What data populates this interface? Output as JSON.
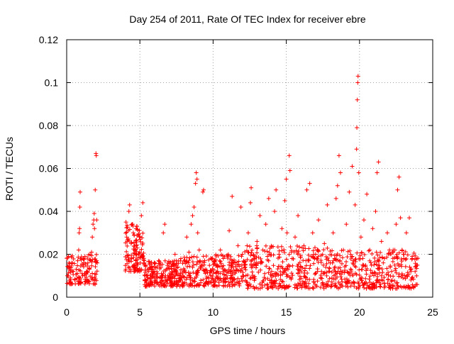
{
  "chart_data": {
    "type": "scatter",
    "title": "Day 254 of 2011, Rate Of TEC Index for receiver ebre",
    "xlabel": "GPS time / hours",
    "ylabel": "ROTI / TECUs",
    "xlim": [
      0,
      25
    ],
    "ylim": [
      0,
      0.12
    ],
    "x_ticks": [
      0,
      5,
      10,
      15,
      20,
      25
    ],
    "x_tick_labels": [
      "0",
      "5",
      "10",
      "15",
      "20",
      "25"
    ],
    "y_ticks": [
      0,
      0.02,
      0.04,
      0.06,
      0.08,
      0.1,
      0.12
    ],
    "y_tick_labels": [
      "0",
      "0.02",
      "0.04",
      "0.06",
      "0.08",
      "0.1",
      "0.12"
    ],
    "grid": true,
    "marker": "+",
    "color": "#ff0000",
    "series": [
      {
        "name": "ROTI",
        "points": [
          [
            0.05,
            0.01
          ],
          [
            0.15,
            0.014
          ],
          [
            0.25,
            0.009
          ],
          [
            0.35,
            0.016
          ],
          [
            0.45,
            0.012
          ],
          [
            0.55,
            0.008
          ],
          [
            0.65,
            0.013
          ],
          [
            0.75,
            0.017
          ],
          [
            0.82,
            0.022
          ],
          [
            0.85,
            0.03
          ],
          [
            0.88,
            0.032
          ],
          [
            0.9,
            0.042
          ],
          [
            0.92,
            0.049
          ],
          [
            0.95,
            0.018
          ],
          [
            1.05,
            0.011
          ],
          [
            1.15,
            0.015
          ],
          [
            1.25,
            0.019
          ],
          [
            1.35,
            0.012
          ],
          [
            1.45,
            0.016
          ],
          [
            1.55,
            0.013
          ],
          [
            1.65,
            0.017
          ],
          [
            1.7,
            0.021
          ],
          [
            1.75,
            0.028
          ],
          [
            1.8,
            0.034
          ],
          [
            1.85,
            0.036
          ],
          [
            1.88,
            0.039
          ],
          [
            1.9,
            0.032
          ],
          [
            1.95,
            0.05
          ],
          [
            2.0,
            0.067
          ],
          [
            2.02,
            0.066
          ],
          [
            2.05,
            0.036
          ],
          [
            4.05,
            0.035
          ],
          [
            4.1,
            0.028
          ],
          [
            4.2,
            0.031
          ],
          [
            4.25,
            0.04
          ],
          [
            4.3,
            0.043
          ],
          [
            4.4,
            0.025
          ],
          [
            4.5,
            0.034
          ],
          [
            4.6,
            0.029
          ],
          [
            4.7,
            0.022
          ],
          [
            4.8,
            0.033
          ],
          [
            4.9,
            0.02
          ],
          [
            5.0,
            0.027
          ],
          [
            5.1,
            0.038
          ],
          [
            5.2,
            0.044
          ],
          [
            5.3,
            0.016
          ],
          [
            5.45,
            0.01
          ],
          [
            5.6,
            0.012
          ],
          [
            5.8,
            0.014
          ],
          [
            6.0,
            0.009
          ],
          [
            6.2,
            0.011
          ],
          [
            6.4,
            0.016
          ],
          [
            6.6,
            0.03
          ],
          [
            6.7,
            0.034
          ],
          [
            6.8,
            0.013
          ],
          [
            7.0,
            0.01
          ],
          [
            7.2,
            0.012
          ],
          [
            7.4,
            0.02
          ],
          [
            7.6,
            0.014
          ],
          [
            7.8,
            0.018
          ],
          [
            8.0,
            0.012
          ],
          [
            8.2,
            0.028
          ],
          [
            8.35,
            0.021
          ],
          [
            8.5,
            0.034
          ],
          [
            8.6,
            0.038
          ],
          [
            8.7,
            0.042
          ],
          [
            8.8,
            0.053
          ],
          [
            8.85,
            0.058
          ],
          [
            8.9,
            0.055
          ],
          [
            8.95,
            0.03
          ],
          [
            9.05,
            0.022
          ],
          [
            9.2,
            0.015
          ],
          [
            9.3,
            0.049
          ],
          [
            9.35,
            0.05
          ],
          [
            9.5,
            0.013
          ],
          [
            9.7,
            0.009
          ],
          [
            9.9,
            0.012
          ],
          [
            10.1,
            0.017
          ],
          [
            10.3,
            0.014
          ],
          [
            10.5,
            0.022
          ],
          [
            10.7,
            0.018
          ],
          [
            10.9,
            0.01
          ],
          [
            11.1,
            0.031
          ],
          [
            11.3,
            0.047
          ],
          [
            11.5,
            0.016
          ],
          [
            11.7,
            0.024
          ],
          [
            11.9,
            0.042
          ],
          [
            12.0,
            0.02
          ],
          [
            12.2,
            0.015
          ],
          [
            12.4,
            0.03
          ],
          [
            12.55,
            0.044
          ],
          [
            12.6,
            0.051
          ],
          [
            12.8,
            0.018
          ],
          [
            13.0,
            0.026
          ],
          [
            13.2,
            0.038
          ],
          [
            13.4,
            0.022
          ],
          [
            13.6,
            0.034
          ],
          [
            13.8,
            0.046
          ],
          [
            14.0,
            0.012
          ],
          [
            14.2,
            0.04
          ],
          [
            14.3,
            0.05
          ],
          [
            14.5,
            0.02
          ],
          [
            14.7,
            0.032
          ],
          [
            14.9,
            0.045
          ],
          [
            15.0,
            0.055
          ],
          [
            15.05,
            0.03
          ],
          [
            15.2,
            0.066
          ],
          [
            15.25,
            0.059
          ],
          [
            15.4,
            0.018
          ],
          [
            15.6,
            0.028
          ],
          [
            15.8,
            0.038
          ],
          [
            16.0,
            0.014
          ],
          [
            16.2,
            0.024
          ],
          [
            16.4,
            0.05
          ],
          [
            16.6,
            0.053
          ],
          [
            16.8,
            0.03
          ],
          [
            17.0,
            0.02
          ],
          [
            17.2,
            0.036
          ],
          [
            17.4,
            0.012
          ],
          [
            17.6,
            0.025
          ],
          [
            17.8,
            0.043
          ],
          [
            18.0,
            0.016
          ],
          [
            18.2,
            0.03
          ],
          [
            18.4,
            0.046
          ],
          [
            18.5,
            0.052
          ],
          [
            18.6,
            0.066
          ],
          [
            18.7,
            0.058
          ],
          [
            18.9,
            0.022
          ],
          [
            19.1,
            0.034
          ],
          [
            19.3,
            0.049
          ],
          [
            19.5,
            0.061
          ],
          [
            19.7,
            0.043
          ],
          [
            19.8,
            0.069
          ],
          [
            19.82,
            0.079
          ],
          [
            19.85,
            0.092
          ],
          [
            19.88,
            0.1
          ],
          [
            19.9,
            0.103
          ],
          [
            19.95,
            0.058
          ],
          [
            20.1,
            0.028
          ],
          [
            20.3,
            0.036
          ],
          [
            20.5,
            0.048
          ],
          [
            20.7,
            0.022
          ],
          [
            20.9,
            0.032
          ],
          [
            21.1,
            0.04
          ],
          [
            21.2,
            0.058
          ],
          [
            21.3,
            0.063
          ],
          [
            21.5,
            0.026
          ],
          [
            21.7,
            0.018
          ],
          [
            21.9,
            0.03
          ],
          [
            22.1,
            0.014
          ],
          [
            22.3,
            0.022
          ],
          [
            22.5,
            0.034
          ],
          [
            22.6,
            0.05
          ],
          [
            22.7,
            0.056
          ],
          [
            22.8,
            0.037
          ],
          [
            23.0,
            0.02
          ],
          [
            23.2,
            0.03
          ],
          [
            23.4,
            0.037
          ],
          [
            23.6,
            0.018
          ],
          [
            23.8,
            0.012
          ],
          [
            23.9,
            0.015
          ]
        ],
        "dense_bands": [
          {
            "x_range": [
              0.0,
              2.1
            ],
            "y_range": [
              0.006,
              0.02
            ],
            "count": 120
          },
          {
            "x_range": [
              4.0,
              5.3
            ],
            "y_range": [
              0.012,
              0.034
            ],
            "count": 120
          },
          {
            "x_range": [
              5.3,
              8.0
            ],
            "y_range": [
              0.005,
              0.017
            ],
            "count": 220
          },
          {
            "x_range": [
              8.0,
              12.0
            ],
            "y_range": [
              0.005,
              0.02
            ],
            "count": 260
          },
          {
            "x_range": [
              12.0,
              18.0
            ],
            "y_range": [
              0.004,
              0.024
            ],
            "count": 360
          },
          {
            "x_range": [
              18.0,
              24.0
            ],
            "y_range": [
              0.004,
              0.022
            ],
            "count": 340
          }
        ]
      }
    ]
  }
}
